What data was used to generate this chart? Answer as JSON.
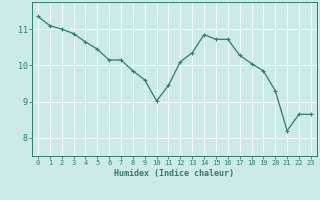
{
  "xlabel": "Humidex (Indice chaleur)",
  "ylabel": "",
  "x_values": [
    0,
    1,
    2,
    3,
    4,
    5,
    6,
    7,
    8,
    9,
    10,
    11,
    12,
    13,
    14,
    15,
    16,
    17,
    18,
    19,
    20,
    21,
    22,
    23
  ],
  "y_values": [
    11.35,
    11.1,
    11.0,
    10.88,
    10.65,
    10.45,
    10.15,
    10.15,
    9.85,
    9.6,
    9.02,
    9.45,
    10.1,
    10.35,
    10.85,
    10.72,
    10.72,
    10.28,
    10.05,
    9.85,
    9.3,
    8.2,
    8.65,
    8.65
  ],
  "line_color": "#2e7d6e",
  "marker": "+",
  "marker_size": 3,
  "marker_linewidth": 0.8,
  "line_width": 0.9,
  "background_color": "#cceae7",
  "grid_color": "#ffffff",
  "grid_linewidth": 0.6,
  "axis_color": "#2e7d6e",
  "tick_color": "#2e7d6e",
  "label_color": "#2e7d6e",
  "ylim": [
    7.5,
    11.75
  ],
  "xlim": [
    -0.5,
    23.5
  ],
  "yticks": [
    8,
    9,
    10,
    11
  ],
  "xticks": [
    0,
    1,
    2,
    3,
    4,
    5,
    6,
    7,
    8,
    9,
    10,
    11,
    12,
    13,
    14,
    15,
    16,
    17,
    18,
    19,
    20,
    21,
    22,
    23
  ],
  "xlabel_fontsize": 6.0,
  "xtick_fontsize": 5.0,
  "ytick_fontsize": 6.0
}
